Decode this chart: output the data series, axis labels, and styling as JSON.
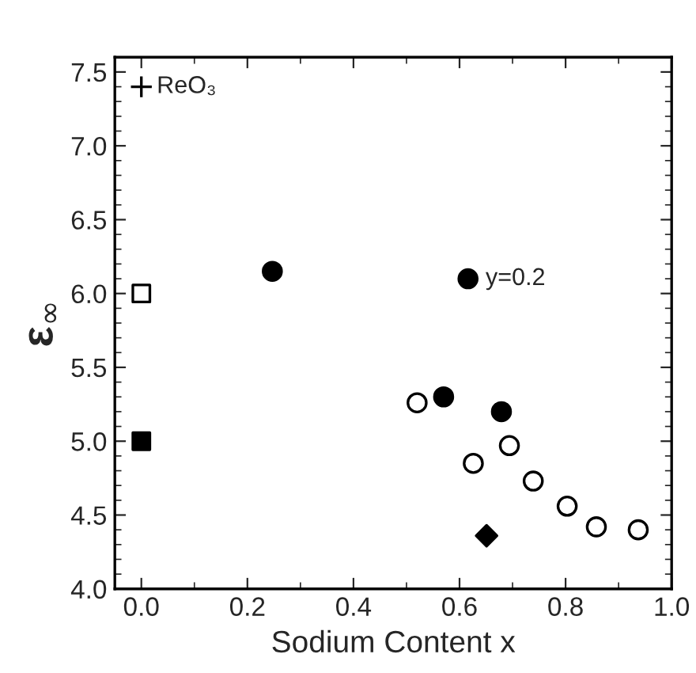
{
  "chart_data": {
    "type": "scatter",
    "xlabel": "Sodium Content x",
    "ylabel": "ε$_{∞}$",
    "xlim": [
      -0.05,
      1.0
    ],
    "xticks": [
      {
        "value": 0,
        "label": "0.0"
      },
      0.2,
      0.4,
      0.6,
      0.8,
      {
        "value": 1,
        "label": "1.0"
      }
    ],
    "ylim": [
      4.0,
      7.6
    ],
    "yticks": [
      {
        "value": 4,
        "label": "4.0"
      },
      4.5,
      {
        "value": 5,
        "label": "5.0"
      },
      5.5,
      {
        "value": 6,
        "label": "6.0"
      },
      6.5,
      {
        "value": 7,
        "label": "7.0"
      },
      7.5
    ],
    "grid": false,
    "legend": false,
    "series": [
      {
        "marker": "circle",
        "color": "#000000",
        "colors": [
          "#ffffff",
          "#ffffff",
          "#ffffff",
          "#ffffff",
          "#ffffff",
          "#ffffff",
          "#ffffff"
        ],
        "x": [
          0.52,
          0.626,
          0.694,
          0.739,
          0.803,
          0.858,
          0.937
        ],
        "values": [
          5.26,
          4.85,
          4.97,
          4.73,
          4.56,
          4.42,
          4.4
        ]
      },
      {
        "marker": "circle",
        "color": "#000000",
        "x": [
          0.247,
          0.616,
          0.57,
          0.679
        ],
        "values": [
          6.15,
          6.1,
          5.3,
          5.2
        ]
      },
      {
        "marker": "square",
        "color": "#000000",
        "colors": [
          "#ffffff"
        ],
        "x": [
          0.0
        ],
        "values": [
          6.0
        ]
      },
      {
        "marker": "square",
        "color": "#000000",
        "x": [
          0.0
        ],
        "values": [
          5.0
        ]
      },
      {
        "marker": "diamond",
        "color": "#000000",
        "x": [
          0.651
        ],
        "values": [
          4.36
        ]
      },
      {
        "marker": "cross",
        "color": "#000000",
        "name": "ReO₃",
        "x": [
          0.0
        ],
        "values": [
          7.4
        ]
      }
    ],
    "annotations": [
      {
        "text": "y=0.2",
        "x": 0.616,
        "y": 6.1
      }
    ]
  }
}
